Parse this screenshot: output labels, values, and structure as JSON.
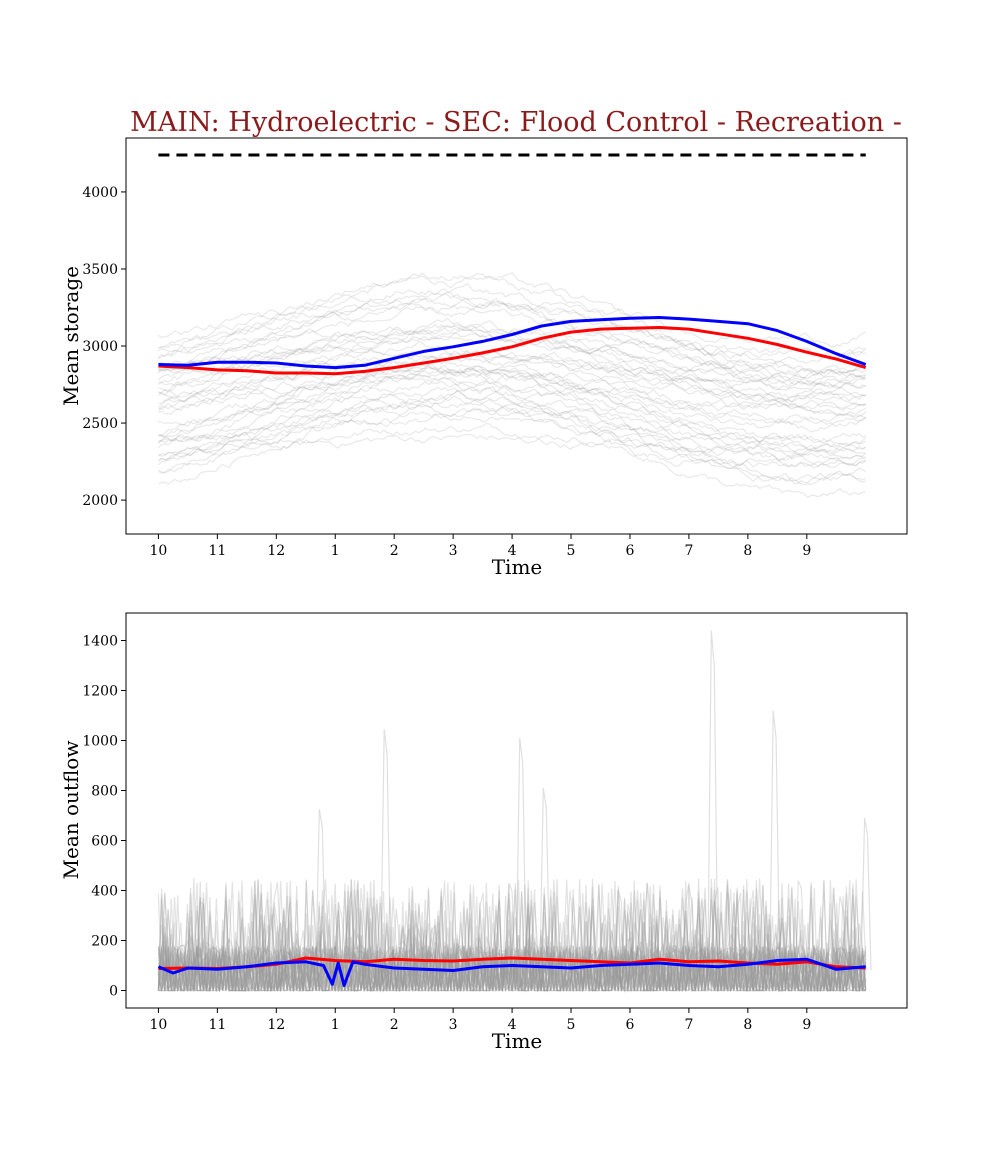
{
  "chart_data": [
    {
      "type": "line",
      "title": "MAIN: Hydroelectric - SEC: Flood Control - Recreation -",
      "title_color": "#8b1a1a",
      "xlabel": "Time",
      "ylabel": "Mean storage",
      "x_tick_labels": [
        "10",
        "11",
        "12",
        "1",
        "2",
        "3",
        "4",
        "5",
        "6",
        "7",
        "8",
        "9"
      ],
      "xlim": [
        -0.55,
        12.7
      ],
      "ylim": [
        1780,
        4350
      ],
      "yticks": [
        2000,
        2500,
        3000,
        3500,
        4000
      ],
      "grid": false,
      "capacity_line": {
        "value": 4240,
        "style": "dashed",
        "color": "#000000"
      },
      "series": [
        {
          "color": "#ff0000",
          "x": [
            0,
            0.5,
            1,
            1.5,
            2,
            2.5,
            3,
            3.5,
            4,
            4.5,
            5,
            5.5,
            6,
            6.5,
            7,
            7.5,
            8,
            8.5,
            9,
            9.5,
            10,
            10.5,
            11,
            11.5,
            12
          ],
          "values": [
            2870,
            2860,
            2845,
            2840,
            2825,
            2825,
            2820,
            2835,
            2860,
            2890,
            2920,
            2955,
            2995,
            3050,
            3090,
            3110,
            3115,
            3120,
            3110,
            3080,
            3050,
            3010,
            2960,
            2915,
            2860
          ]
        },
        {
          "color": "#0000ff",
          "x": [
            0,
            0.5,
            1,
            1.5,
            2,
            2.5,
            3,
            3.5,
            4,
            4.5,
            5,
            5.5,
            6,
            6.5,
            7,
            7.5,
            8,
            8.5,
            9,
            9.5,
            10,
            10.5,
            11,
            11.5,
            12
          ],
          "values": [
            2880,
            2875,
            2895,
            2895,
            2890,
            2870,
            2860,
            2875,
            2920,
            2965,
            2995,
            3030,
            3075,
            3130,
            3160,
            3170,
            3180,
            3185,
            3175,
            3160,
            3145,
            3100,
            3030,
            2950,
            2880
          ]
        }
      ],
      "background_runs": {
        "color": "#999999",
        "count": 40,
        "ensemble_range": [
          1890,
          3520
        ]
      }
    },
    {
      "type": "line",
      "xlabel": "Time",
      "ylabel": "Mean outflow",
      "x_tick_labels": [
        "10",
        "11",
        "12",
        "1",
        "2",
        "3",
        "4",
        "5",
        "6",
        "7",
        "8",
        "9"
      ],
      "xlim": [
        -0.55,
        12.7
      ],
      "ylim": [
        -70,
        1510
      ],
      "yticks": [
        0,
        200,
        400,
        600,
        800,
        1000,
        1200,
        1400
      ],
      "grid": false,
      "series": [
        {
          "color": "#ff0000",
          "x": [
            0,
            0.5,
            1,
            1.5,
            2,
            2.5,
            3,
            3.5,
            4,
            4.5,
            5,
            5.5,
            6,
            6.5,
            7,
            7.5,
            8,
            8.5,
            9,
            9.5,
            10,
            10.5,
            11,
            11.5,
            12
          ],
          "values": [
            88,
            90,
            88,
            95,
            105,
            130,
            120,
            115,
            125,
            120,
            118,
            125,
            130,
            125,
            120,
            115,
            110,
            125,
            115,
            118,
            110,
            105,
            115,
            95,
            90
          ]
        },
        {
          "color": "#0000ff",
          "x": [
            0,
            0.25,
            0.5,
            1,
            1.5,
            2,
            2.5,
            2.8,
            2.95,
            3.05,
            3.15,
            3.3,
            3.5,
            4,
            4.5,
            5,
            5.5,
            6,
            6.5,
            7,
            7.5,
            8,
            8.5,
            9,
            9.5,
            10,
            10.5,
            11,
            11.5,
            12
          ],
          "values": [
            95,
            70,
            90,
            85,
            95,
            110,
            115,
            100,
            25,
            110,
            20,
            115,
            105,
            90,
            85,
            80,
            95,
            100,
            95,
            90,
            100,
            105,
            110,
            100,
            95,
            105,
            120,
            125,
            85,
            95
          ]
        }
      ],
      "background_runs": {
        "color": "#999999",
        "count": 40,
        "spikes": [
          [
            2.75,
            725
          ],
          [
            3.85,
            1045
          ],
          [
            6.15,
            1010
          ],
          [
            6.55,
            810
          ],
          [
            9.4,
            1440
          ],
          [
            10.45,
            1120
          ],
          [
            12.0,
            690
          ]
        ]
      }
    }
  ]
}
